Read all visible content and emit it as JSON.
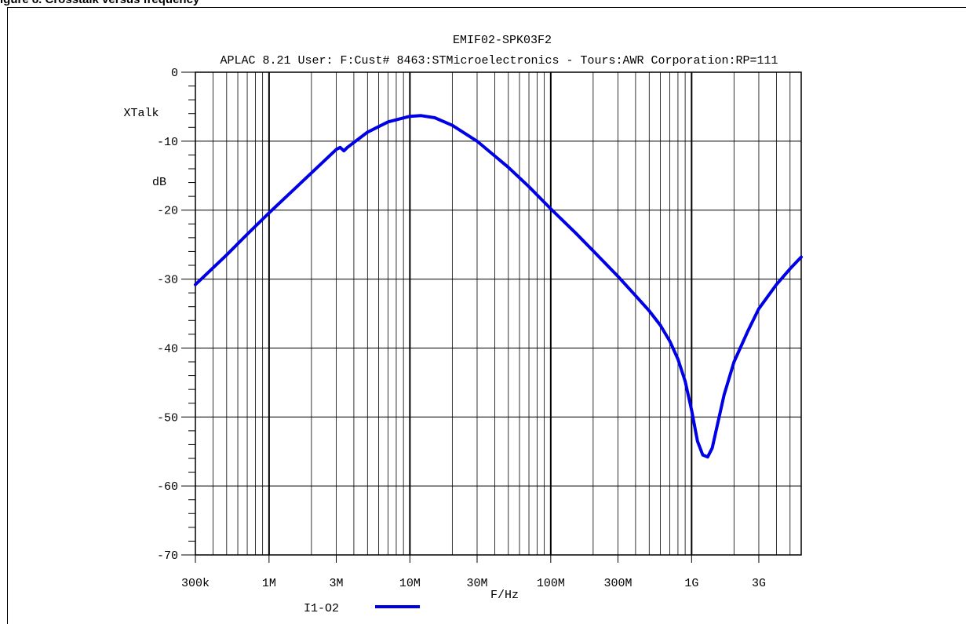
{
  "figure": {
    "header_text": "igure 8. Crosstalk versus frequency"
  },
  "chart_data": {
    "type": "line",
    "title": "EMIF02-SPK03F2",
    "subtitle": "APLAC 8.21 User: F:Cust# 8463:STMicroelectronics - Tours:AWR Corporation:RP=111",
    "ylabel_line1": "XTalk",
    "ylabel_line2": "dB",
    "xlabel": "F/Hz",
    "x_scale": "log",
    "xlim": [
      300000,
      6000000000
    ],
    "ylim": [
      -70,
      0
    ],
    "grid": true,
    "x_ticks": [
      {
        "value": 300000,
        "label": "300k"
      },
      {
        "value": 1000000,
        "label": "1M"
      },
      {
        "value": 3000000,
        "label": "3M"
      },
      {
        "value": 10000000,
        "label": "10M"
      },
      {
        "value": 30000000,
        "label": "30M"
      },
      {
        "value": 100000000,
        "label": "100M"
      },
      {
        "value": 300000000,
        "label": "300M"
      },
      {
        "value": 1000000000,
        "label": "1G"
      },
      {
        "value": 3000000000,
        "label": "3G"
      }
    ],
    "y_ticks": [
      {
        "value": 0,
        "label": "0"
      },
      {
        "value": -10,
        "label": "-10"
      },
      {
        "value": -20,
        "label": "-20"
      },
      {
        "value": -30,
        "label": "-30"
      },
      {
        "value": -40,
        "label": "-40"
      },
      {
        "value": -50,
        "label": "-50"
      },
      {
        "value": -60,
        "label": "-60"
      },
      {
        "value": -70,
        "label": "-70"
      }
    ],
    "legend_position": "bottom-center",
    "series": [
      {
        "name": "I1-O2",
        "color": "#0000e6",
        "x": [
          300000,
          500000,
          700000,
          1000000,
          1500000,
          2000000,
          3000000,
          3200000,
          3400000,
          3600000,
          5000000,
          7000000,
          10000000,
          12000000,
          15000000,
          20000000,
          30000000,
          50000000,
          70000000,
          100000000,
          150000000,
          200000000,
          300000000,
          400000000,
          500000000,
          600000000,
          700000000,
          800000000,
          900000000,
          1000000000,
          1100000000,
          1200000000,
          1300000000,
          1400000000,
          1500000000,
          1700000000,
          2000000000,
          2500000000,
          3000000000,
          4000000000,
          5000000000,
          6000000000
        ],
        "y": [
          -30.8,
          -26.5,
          -23.5,
          -20.4,
          -17.0,
          -14.6,
          -11.2,
          -10.9,
          -11.4,
          -10.9,
          -8.7,
          -7.2,
          -6.4,
          -6.3,
          -6.6,
          -7.7,
          -10.0,
          -13.8,
          -16.6,
          -19.8,
          -23.3,
          -25.9,
          -29.6,
          -32.4,
          -34.6,
          -36.7,
          -39.0,
          -41.6,
          -44.8,
          -49.0,
          -53.5,
          -55.5,
          -55.8,
          -54.5,
          -51.8,
          -46.8,
          -42.0,
          -37.6,
          -34.3,
          -30.8,
          -28.5,
          -26.8
        ]
      }
    ]
  }
}
